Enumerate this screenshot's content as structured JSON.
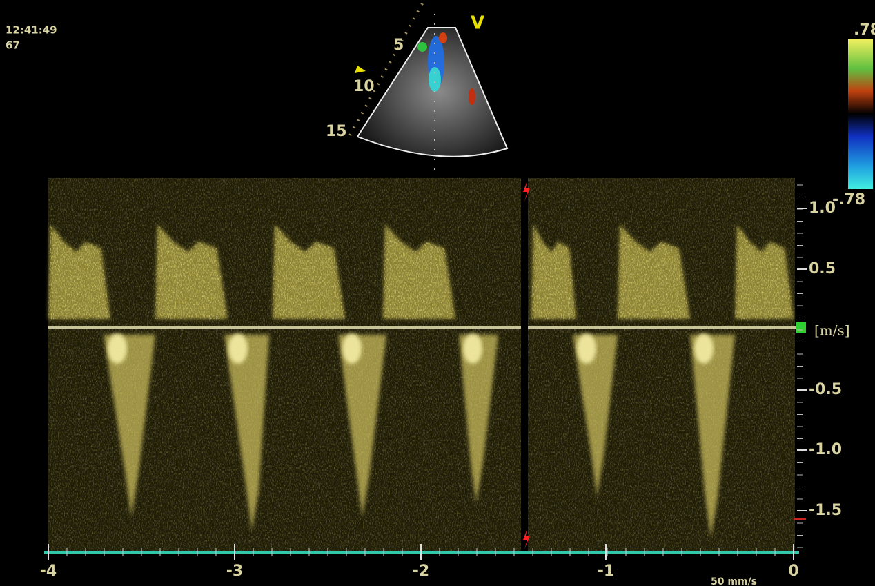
{
  "status": {
    "time": "12:41:49",
    "rate": "67"
  },
  "sector": {
    "mode": "V",
    "depth_labels": [
      "5",
      "10",
      "15"
    ]
  },
  "color_scale": {
    "max": ".78",
    "min": "-.78"
  },
  "velocity_scale": {
    "labels": [
      "1.0",
      "0.5",
      "-0.5",
      "-1.0",
      "-1.5"
    ],
    "unit": "[m/s]"
  },
  "time_scale": {
    "labels": [
      "-4",
      "-3",
      "-2",
      "-1",
      "0"
    ],
    "sweep_speed": "50 mm/s"
  }
}
